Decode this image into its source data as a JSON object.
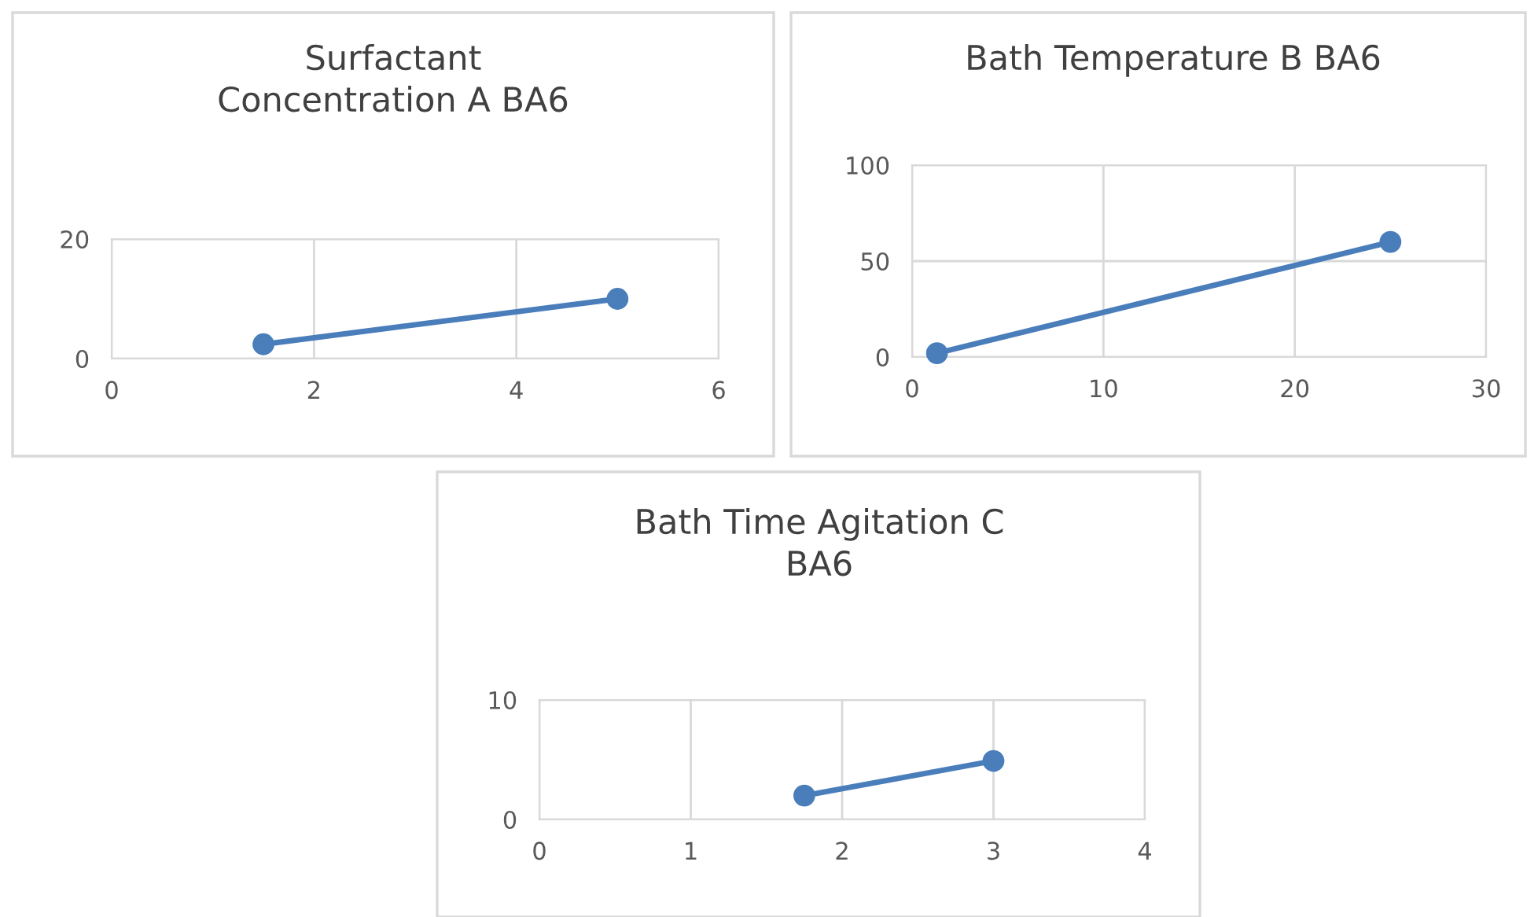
{
  "chart_data": [
    {
      "type": "line",
      "title": "Surfactant\nConcentration A BA6",
      "x": [
        1.5,
        5
      ],
      "values": [
        2.4,
        10
      ],
      "color": "#4a7ebb",
      "marker": "circle",
      "xlim": [
        0,
        6
      ],
      "xticks": [
        0,
        2,
        4,
        6
      ],
      "ylim": [
        0,
        20
      ],
      "yticks": [
        0,
        20
      ],
      "grid": true,
      "legend": false
    },
    {
      "type": "line",
      "title": "Bath Temperature B BA6",
      "x": [
        1.3,
        25
      ],
      "values": [
        2,
        60
      ],
      "color": "#4a7ebb",
      "marker": "circle",
      "xlim": [
        0,
        30
      ],
      "xticks": [
        0,
        10,
        20,
        30
      ],
      "ylim": [
        0,
        100
      ],
      "yticks": [
        0,
        50,
        100
      ],
      "grid": true,
      "legend": false
    },
    {
      "type": "line",
      "title": "Bath Time Agitation C\nBA6",
      "x": [
        1.75,
        3
      ],
      "values": [
        2,
        4.9
      ],
      "color": "#4a7ebb",
      "marker": "circle",
      "xlim": [
        0,
        4
      ],
      "xticks": [
        0,
        1,
        2,
        3,
        4
      ],
      "ylim": [
        0,
        10
      ],
      "yticks": [
        0,
        10
      ],
      "grid": true,
      "legend": false
    }
  ]
}
